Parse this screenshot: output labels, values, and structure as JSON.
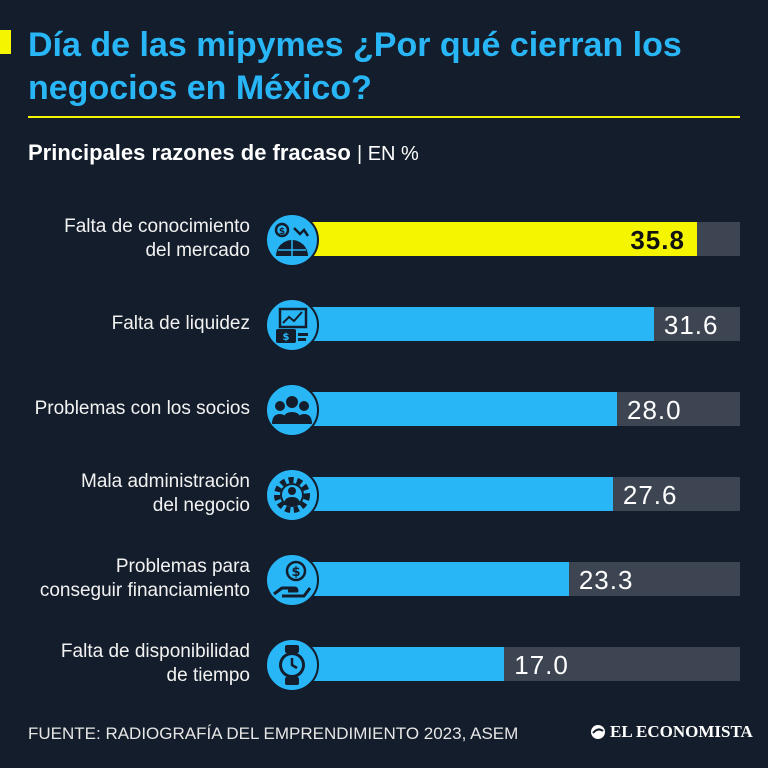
{
  "header": {
    "title": "Día de las mipymes ¿Por qué cierran los negocios en México?",
    "subtitle": "Principales razones de fracaso",
    "unit": "| EN %"
  },
  "colors": {
    "background": "#141d2b",
    "title": "#29b6f6",
    "accent": "#f5f500",
    "bar": "#29b6f6",
    "highlight_bar": "#f5f500",
    "track": "#3d4552"
  },
  "chart_data": {
    "type": "bar",
    "orientation": "horizontal",
    "title": "Principales razones de fracaso",
    "unit": "EN %",
    "xlim": [
      0,
      40
    ],
    "grid": false,
    "categories": [
      "Falta de conocimiento del mercado",
      "Falta de liquidez",
      "Problemas con los socios",
      "Mala administración del negocio",
      "Problemas para conseguir financiamiento",
      "Falta de disponibilidad de tiempo"
    ],
    "values": [
      35.8,
      31.6,
      28.0,
      27.6,
      23.3,
      17.0
    ],
    "value_labels": [
      "35.8",
      "31.6",
      "28.0",
      "27.6",
      "23.3",
      "17.0"
    ],
    "highlighted_index": 0
  },
  "rows": [
    {
      "label_lines": [
        "Falta de conocimiento",
        "del mercado"
      ],
      "icon": "globe-market-icon"
    },
    {
      "label_lines": [
        "Falta de liquidez"
      ],
      "icon": "money-chart-icon"
    },
    {
      "label_lines": [
        "Problemas con los socios"
      ],
      "icon": "people-group-icon"
    },
    {
      "label_lines": [
        "Mala administración",
        "del negocio"
      ],
      "icon": "gear-person-icon"
    },
    {
      "label_lines": [
        "Problemas para",
        "conseguir financiamiento"
      ],
      "icon": "dollar-hand-icon"
    },
    {
      "label_lines": [
        "Falta de disponibilidad",
        "de tiempo"
      ],
      "icon": "watch-clock-icon"
    }
  ],
  "footer": {
    "source": "FUENTE: RADIOGRAFÍA DEL EMPRENDIMIENTO 2023, ASEM",
    "brand": "EL ECONOMISTA"
  }
}
